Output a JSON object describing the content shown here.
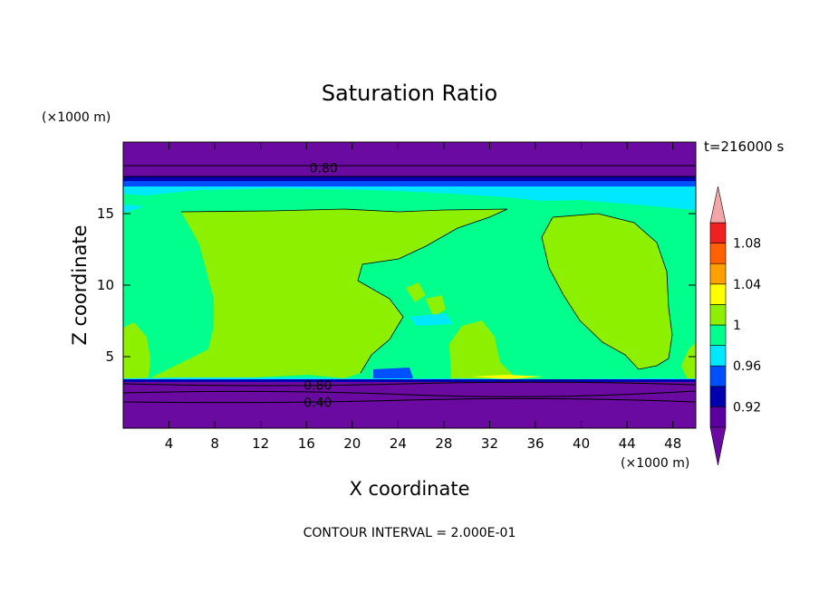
{
  "chart_data": {
    "type": "heatmap",
    "title": "Saturation Ratio",
    "xlabel": "X coordinate",
    "ylabel": "Z coordinate",
    "x_unit": "(×1000 m)",
    "y_unit": "(×1000 m)",
    "time_label": "t=216000 s",
    "footer": "CONTOUR INTERVAL = 2.000E-01",
    "xlim": [
      0,
      50
    ],
    "ylim": [
      0,
      20
    ],
    "x_ticks": [
      "4",
      "8",
      "12",
      "16",
      "20",
      "24",
      "28",
      "32",
      "36",
      "40",
      "44",
      "48"
    ],
    "x_tick_values": [
      4,
      8,
      12,
      16,
      20,
      24,
      28,
      32,
      36,
      40,
      44,
      48
    ],
    "y_ticks": [
      "5",
      "10",
      "15"
    ],
    "y_tick_values": [
      5,
      10,
      15
    ],
    "contour_labels": [
      {
        "text": "0.80",
        "x": 17.5,
        "y": 18.2
      },
      {
        "text": "0.80",
        "x": 17.0,
        "y": 3.0
      },
      {
        "text": "0.40",
        "x": 17.0,
        "y": 1.8
      }
    ],
    "colorbar": {
      "labels": [
        "1.08",
        "1.04",
        "1",
        "0.96",
        "0.92"
      ],
      "label_values": [
        1.08,
        1.04,
        1.0,
        0.96,
        0.92
      ],
      "levels": [
        0.9,
        0.92,
        0.94,
        0.96,
        0.98,
        1.0,
        1.02,
        1.04,
        1.06,
        1.08,
        1.1
      ],
      "colors": [
        "#5a00a0",
        "#0000b0",
        "#0050ff",
        "#00e8ff",
        "#00ff8c",
        "#8cf000",
        "#ffff00",
        "#ffa000",
        "#ff6000",
        "#f02020"
      ],
      "under_color": "#6a0aa0",
      "over_color": "#f4a6a6"
    },
    "colors": {
      "purple": "#6a0aa0",
      "dark_blue": "#0000b0",
      "blue": "#0050ff",
      "cyan": "#00e8ff",
      "green": "#00ff8c",
      "yellow_green": "#8cf000",
      "yellow": "#ffff00"
    }
  }
}
